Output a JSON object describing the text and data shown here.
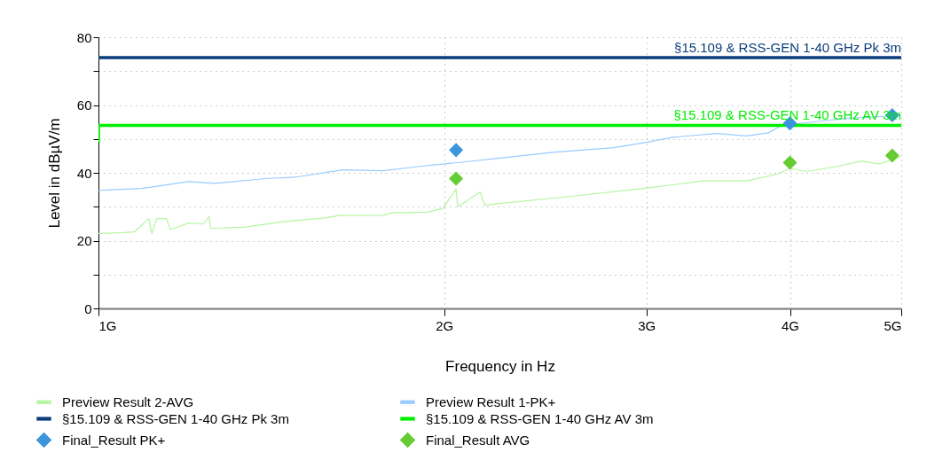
{
  "chart_data": {
    "type": "line",
    "xlabel": "Frequency in Hz",
    "ylabel": "Level in dBµV/m",
    "log": "x",
    "xlim": [
      1,
      5
    ],
    "xticks": [
      {
        "value": 1,
        "label": "1G"
      },
      {
        "value": 2,
        "label": "2G"
      },
      {
        "value": 3,
        "label": "3G"
      },
      {
        "value": 4,
        "label": "4G"
      },
      {
        "value": 5,
        "label": "5G"
      }
    ],
    "ylim": [
      0,
      80
    ],
    "yticks": [
      0,
      {
        "value": 10,
        "label": null
      },
      20,
      {
        "value": 30,
        "label": null
      },
      40,
      {
        "value": 50,
        "label": null
      },
      60,
      {
        "value": 70,
        "label": null
      },
      80
    ],
    "grid": true,
    "legend": "bottom",
    "line_style": "solid",
    "series": [
      {
        "name": "Preview Result 2-AVG",
        "marker": "none",
        "color": "#b4f5a0",
        "x": [
          1,
          1.047,
          1.075,
          1.106,
          1.113,
          1.124,
          1.146,
          1.155,
          1.198,
          1.235,
          1.248,
          1.252,
          1.343,
          1.449,
          1.575,
          1.62,
          1.771,
          1.802,
          1.935,
          1.994,
          2.048,
          2.055,
          2.149,
          2.17,
          2.218,
          2.57,
          2.98,
          3.36,
          3.667,
          3.9,
          4,
          4.13,
          4.37,
          4.62,
          4.79,
          5
        ],
        "values": [
          22.1,
          22.3,
          22.6,
          26.5,
          22.1,
          26.5,
          26.5,
          23.2,
          25.2,
          24.9,
          27.1,
          23.6,
          24,
          25.6,
          26.7,
          27.4,
          27.5,
          28.2,
          28.4,
          29.5,
          35.2,
          30,
          34.3,
          30.4,
          30.8,
          33,
          35.4,
          37.6,
          37.6,
          39.6,
          41.3,
          40.4,
          41.7,
          43.5,
          42.6,
          44.8
        ]
      },
      {
        "name": "Preview Result 1-PK+",
        "marker": "none",
        "color": "#99ccff",
        "x": [
          1,
          1.091,
          1.198,
          1.264,
          1.398,
          1.483,
          1.632,
          1.771,
          1.881,
          1.994,
          2.055,
          2.246,
          2.499,
          2.809,
          3,
          3.16,
          3.456,
          3.667,
          3.83,
          3.93,
          4,
          4.26,
          4.51,
          4.79,
          5
        ],
        "values": [
          34.8,
          35.4,
          37.4,
          36.9,
          38.3,
          38.7,
          40.9,
          40.6,
          41.7,
          42.6,
          43,
          44.4,
          46.1,
          47.4,
          49,
          50.5,
          51.6,
          50.9,
          51.8,
          53.9,
          null,
          55.3,
          56.1,
          56.6,
          57
        ]
      },
      {
        "name": "§15.109 & RSS-GEN 1-40 GHz Pk 3m",
        "marker": "none",
        "color": "#0a3d7a",
        "x": [
          1,
          5
        ],
        "values": [
          74,
          74
        ]
      },
      {
        "name": "§15.109 & RSS-GEN 1-40 GHz AV 3m",
        "marker": "none",
        "color": "#00ee00",
        "x": [
          1,
          1,
          5
        ],
        "values": [
          49,
          54,
          54
        ]
      },
      {
        "name": "Final_Result PK+",
        "type": "scatter",
        "marker": "diamond",
        "color": "#3c96dc",
        "x": [
          2.048,
          4,
          4.91
        ],
        "values": [
          46.7,
          54.6,
          57
        ]
      },
      {
        "name": "Final_Result AVG",
        "type": "scatter",
        "marker": "diamond",
        "color": "#66cc33",
        "x": [
          2.048,
          4,
          4.91
        ],
        "values": [
          38.3,
          43,
          45.1
        ]
      }
    ],
    "annotations": [
      {
        "text": "§15.109 & RSS-GEN 1-40 GHz Pk 3m",
        "x": 5,
        "y": 74
      },
      {
        "text": "§15.109 & RSS-GEN 1-40 GHz AV 3m",
        "x": 5,
        "y": 54
      }
    ]
  }
}
